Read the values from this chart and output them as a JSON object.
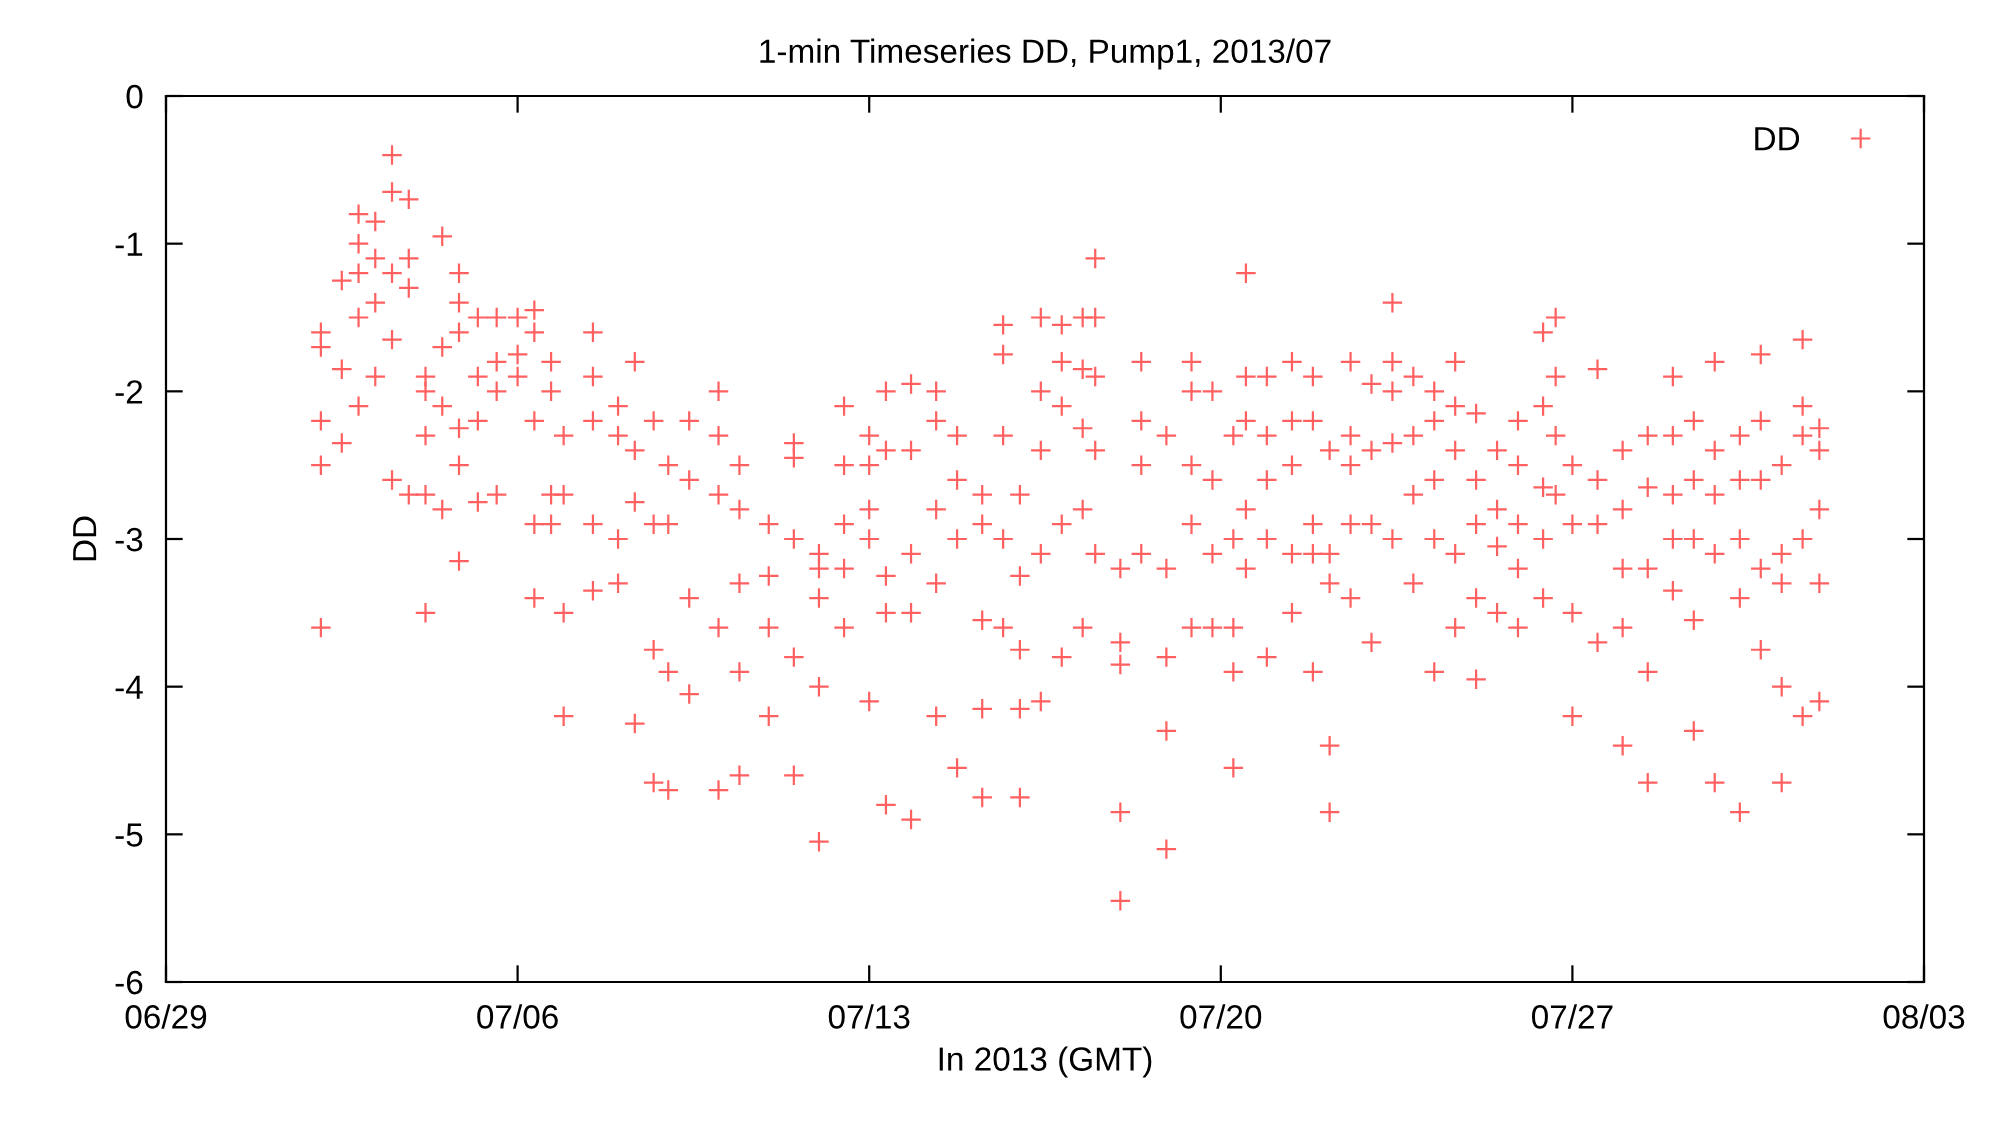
{
  "chart_data": {
    "type": "scatter",
    "title": "1-min Timeseries DD, Pump1, 2013/07",
    "xlabel": "In 2013 (GMT)",
    "ylabel": "DD",
    "xlim": [
      "2013-06-29",
      "2013-08-03"
    ],
    "xticks": [
      {
        "value": "2013-06-29",
        "label": "06/29"
      },
      {
        "value": "2013-07-06",
        "label": "07/06"
      },
      {
        "value": "2013-07-13",
        "label": "07/13"
      },
      {
        "value": "2013-07-20",
        "label": "07/20"
      },
      {
        "value": "2013-07-27",
        "label": "07/27"
      },
      {
        "value": "2013-08-03",
        "label": "08/03"
      }
    ],
    "ylim": [
      -6,
      0
    ],
    "yticks": [
      -6,
      -5,
      -4,
      -3,
      -2,
      -1,
      0
    ],
    "grid": false,
    "legend": "top right",
    "marker": "cross",
    "series": [
      {
        "name": "DD",
        "color": "#ff6060",
        "x": [
          "2013-07-02T02:00",
          "2013-07-02T02:00",
          "2013-07-02T02:00",
          "2013-07-02T02:00",
          "2013-07-02T02:00",
          "2013-07-02T12:00",
          "2013-07-02T12:00",
          "2013-07-02T12:00",
          "2013-07-02T20:00",
          "2013-07-02T20:00",
          "2013-07-02T20:00",
          "2013-07-02T20:00",
          "2013-07-02T20:00",
          "2013-07-03T04:00",
          "2013-07-03T04:00",
          "2013-07-03T04:00",
          "2013-07-03T04:00",
          "2013-07-03T12:00",
          "2013-07-03T12:00",
          "2013-07-03T12:00",
          "2013-07-03T12:00",
          "2013-07-03T12:00",
          "2013-07-03T20:00",
          "2013-07-03T20:00",
          "2013-07-03T20:00",
          "2013-07-03T20:00",
          "2013-07-04T04:00",
          "2013-07-04T04:00",
          "2013-07-04T04:00",
          "2013-07-04T04:00",
          "2013-07-04T04:00",
          "2013-07-04T12:00",
          "2013-07-04T12:00",
          "2013-07-04T12:00",
          "2013-07-04T12:00",
          "2013-07-04T20:00",
          "2013-07-04T20:00",
          "2013-07-04T20:00",
          "2013-07-04T20:00",
          "2013-07-04T20:00",
          "2013-07-04T20:00",
          "2013-07-05T05:00",
          "2013-07-05T05:00",
          "2013-07-05T05:00",
          "2013-07-05T05:00",
          "2013-07-05T14:00",
          "2013-07-05T14:00",
          "2013-07-05T14:00",
          "2013-07-05T14:00",
          "2013-07-06T00:00",
          "2013-07-06T00:00",
          "2013-07-06T00:00",
          "2013-07-06T08:00",
          "2013-07-06T08:00",
          "2013-07-06T08:00",
          "2013-07-06T08:00",
          "2013-07-06T08:00",
          "2013-07-06T16:00",
          "2013-07-06T16:00",
          "2013-07-06T16:00",
          "2013-07-06T16:00",
          "2013-07-06T22:00",
          "2013-07-06T22:00",
          "2013-07-06T22:00",
          "2013-07-06T22:00",
          "2013-07-07T12:00",
          "2013-07-07T12:00",
          "2013-07-07T12:00",
          "2013-07-07T12:00",
          "2013-07-07T12:00",
          "2013-07-08T00:00",
          "2013-07-08T00:00",
          "2013-07-08T00:00",
          "2013-07-08T00:00",
          "2013-07-08T08:00",
          "2013-07-08T08:00",
          "2013-07-08T08:00",
          "2013-07-08T08:00",
          "2013-07-08T17:00",
          "2013-07-08T17:00",
          "2013-07-08T17:00",
          "2013-07-08T17:00",
          "2013-07-09T00:00",
          "2013-07-09T00:00",
          "2013-07-09T00:00",
          "2013-07-09T00:00",
          "2013-07-09T10:00",
          "2013-07-09T10:00",
          "2013-07-09T10:00",
          "2013-07-09T10:00",
          "2013-07-10T00:00",
          "2013-07-10T00:00",
          "2013-07-10T00:00",
          "2013-07-10T00:00",
          "2013-07-10T00:00",
          "2013-07-10T10:00",
          "2013-07-10T10:00",
          "2013-07-10T10:00",
          "2013-07-10T10:00",
          "2013-07-10T10:00",
          "2013-07-11T00:00",
          "2013-07-11T00:00",
          "2013-07-11T00:00",
          "2013-07-11T00:00",
          "2013-07-11T12:00",
          "2013-07-11T12:00",
          "2013-07-11T12:00",
          "2013-07-11T12:00",
          "2013-07-11T12:00",
          "2013-07-12T00:00",
          "2013-07-12T00:00",
          "2013-07-12T00:00",
          "2013-07-12T00:00",
          "2013-07-12T00:00",
          "2013-07-12T12:00",
          "2013-07-12T12:00",
          "2013-07-12T12:00",
          "2013-07-12T12:00",
          "2013-07-12T12:00",
          "2013-07-13T00:00",
          "2013-07-13T00:00",
          "2013-07-13T00:00",
          "2013-07-13T00:00",
          "2013-07-13T00:00",
          "2013-07-13T08:00",
          "2013-07-13T08:00",
          "2013-07-13T08:00",
          "2013-07-13T08:00",
          "2013-07-13T08:00",
          "2013-07-13T20:00",
          "2013-07-13T20:00",
          "2013-07-13T20:00",
          "2013-07-13T20:00",
          "2013-07-13T20:00",
          "2013-07-14T08:00",
          "2013-07-14T08:00",
          "2013-07-14T08:00",
          "2013-07-14T08:00",
          "2013-07-14T08:00",
          "2013-07-14T18:00",
          "2013-07-14T18:00",
          "2013-07-14T18:00",
          "2013-07-14T18:00",
          "2013-07-15T06:00",
          "2013-07-15T06:00",
          "2013-07-15T06:00",
          "2013-07-15T06:00",
          "2013-07-15T06:00",
          "2013-07-15T16:00",
          "2013-07-15T16:00",
          "2013-07-15T16:00",
          "2013-07-15T16:00",
          "2013-07-15T16:00",
          "2013-07-16T00:00",
          "2013-07-16T00:00",
          "2013-07-16T00:00",
          "2013-07-16T00:00",
          "2013-07-16T00:00",
          "2013-07-16T10:00",
          "2013-07-16T10:00",
          "2013-07-16T10:00",
          "2013-07-16T10:00",
          "2013-07-16T10:00",
          "2013-07-16T20:00",
          "2013-07-16T20:00",
          "2013-07-16T20:00",
          "2013-07-16T20:00",
          "2013-07-16T20:00",
          "2013-07-17T06:00",
          "2013-07-17T06:00",
          "2013-07-17T06:00",
          "2013-07-17T06:00",
          "2013-07-17T06:00",
          "2013-07-17T12:00",
          "2013-07-17T12:00",
          "2013-07-17T12:00",
          "2013-07-17T12:00",
          "2013-07-17T12:00",
          "2013-07-18T00:00",
          "2013-07-18T00:00",
          "2013-07-18T00:00",
          "2013-07-18T00:00",
          "2013-07-18T00:00",
          "2013-07-18T10:00",
          "2013-07-18T10:00",
          "2013-07-18T10:00",
          "2013-07-18T10:00",
          "2013-07-18T22:00",
          "2013-07-18T22:00",
          "2013-07-18T22:00",
          "2013-07-18T22:00",
          "2013-07-18T22:00",
          "2013-07-19T10:00",
          "2013-07-19T10:00",
          "2013-07-19T10:00",
          "2013-07-19T10:00",
          "2013-07-19T10:00",
          "2013-07-19T20:00",
          "2013-07-19T20:00",
          "2013-07-19T20:00",
          "2013-07-19T20:00",
          "2013-07-20T06:00",
          "2013-07-20T06:00",
          "2013-07-20T06:00",
          "2013-07-20T06:00",
          "2013-07-20T06:00",
          "2013-07-20T12:00",
          "2013-07-20T12:00",
          "2013-07-20T12:00",
          "2013-07-20T12:00",
          "2013-07-20T12:00",
          "2013-07-20T22:00",
          "2013-07-20T22:00",
          "2013-07-20T22:00",
          "2013-07-20T22:00",
          "2013-07-20T22:00",
          "2013-07-21T10:00",
          "2013-07-21T10:00",
          "2013-07-21T10:00",
          "2013-07-21T10:00",
          "2013-07-21T10:00",
          "2013-07-21T20:00",
          "2013-07-21T20:00",
          "2013-07-21T20:00",
          "2013-07-21T20:00",
          "2013-07-21T20:00",
          "2013-07-22T04:00",
          "2013-07-22T04:00",
          "2013-07-22T04:00",
          "2013-07-22T04:00",
          "2013-07-22T04:00",
          "2013-07-22T14:00",
          "2013-07-22T14:00",
          "2013-07-22T14:00",
          "2013-07-22T14:00",
          "2013-07-22T14:00",
          "2013-07-23T00:00",
          "2013-07-23T00:00",
          "2013-07-23T00:00",
          "2013-07-23T00:00",
          "2013-07-23T10:00",
          "2013-07-23T10:00",
          "2013-07-23T10:00",
          "2013-07-23T10:00",
          "2013-07-23T10:00",
          "2013-07-23T20:00",
          "2013-07-23T20:00",
          "2013-07-23T20:00",
          "2013-07-23T20:00",
          "2013-07-24T06:00",
          "2013-07-24T06:00",
          "2013-07-24T06:00",
          "2013-07-24T06:00",
          "2013-07-24T06:00",
          "2013-07-24T16:00",
          "2013-07-24T16:00",
          "2013-07-24T16:00",
          "2013-07-24T16:00",
          "2013-07-24T16:00",
          "2013-07-25T02:00",
          "2013-07-25T02:00",
          "2013-07-25T02:00",
          "2013-07-25T02:00",
          "2013-07-25T02:00",
          "2013-07-25T12:00",
          "2013-07-25T12:00",
          "2013-07-25T12:00",
          "2013-07-25T12:00",
          "2013-07-25T22:00",
          "2013-07-25T22:00",
          "2013-07-25T22:00",
          "2013-07-25T22:00",
          "2013-07-25T22:00",
          "2013-07-26T10:00",
          "2013-07-26T10:00",
          "2013-07-26T10:00",
          "2013-07-26T10:00",
          "2013-07-26T10:00",
          "2013-07-26T16:00",
          "2013-07-26T16:00",
          "2013-07-26T16:00",
          "2013-07-26T16:00",
          "2013-07-27T00:00",
          "2013-07-27T00:00",
          "2013-07-27T00:00",
          "2013-07-27T00:00",
          "2013-07-27T12:00",
          "2013-07-27T12:00",
          "2013-07-27T12:00",
          "2013-07-27T12:00",
          "2013-07-28T00:00",
          "2013-07-28T00:00",
          "2013-07-28T00:00",
          "2013-07-28T00:00",
          "2013-07-28T00:00",
          "2013-07-28T12:00",
          "2013-07-28T12:00",
          "2013-07-28T12:00",
          "2013-07-28T12:00",
          "2013-07-28T12:00",
          "2013-07-29T00:00",
          "2013-07-29T00:00",
          "2013-07-29T00:00",
          "2013-07-29T00:00",
          "2013-07-29T00:00",
          "2013-07-29T10:00",
          "2013-07-29T10:00",
          "2013-07-29T10:00",
          "2013-07-29T10:00",
          "2013-07-29T10:00",
          "2013-07-29T20:00",
          "2013-07-29T20:00",
          "2013-07-29T20:00",
          "2013-07-29T20:00",
          "2013-07-29T20:00",
          "2013-07-30T08:00",
          "2013-07-30T08:00",
          "2013-07-30T08:00",
          "2013-07-30T08:00",
          "2013-07-30T08:00",
          "2013-07-30T18:00",
          "2013-07-30T18:00",
          "2013-07-30T18:00",
          "2013-07-30T18:00",
          "2013-07-30T18:00",
          "2013-07-31T04:00",
          "2013-07-31T04:00",
          "2013-07-31T04:00",
          "2013-07-31T04:00",
          "2013-07-31T04:00",
          "2013-07-31T14:00",
          "2013-07-31T14:00",
          "2013-07-31T14:00",
          "2013-07-31T14:00",
          "2013-07-31T14:00",
          "2013-07-31T22:00",
          "2013-07-31T22:00",
          "2013-07-31T22:00",
          "2013-07-31T22:00",
          "2013-07-31T22:00"
        ],
        "values": [
          -1.6,
          -1.7,
          -2.2,
          -2.5,
          -3.6,
          -1.25,
          -1.85,
          -2.35,
          -0.8,
          -1.0,
          -1.2,
          -2.1,
          -1.5,
          -0.85,
          -1.1,
          -1.4,
          -1.9,
          -0.4,
          -0.65,
          -1.2,
          -1.65,
          -2.6,
          -0.7,
          -1.1,
          -1.3,
          -2.7,
          -1.9,
          -2.0,
          -2.3,
          -2.7,
          -3.5,
          -0.95,
          -1.7,
          -2.1,
          -2.8,
          -1.2,
          -1.4,
          -1.6,
          -2.25,
          -2.5,
          -3.15,
          -1.5,
          -1.9,
          -2.2,
          -2.75,
          -1.5,
          -1.8,
          -2.0,
          -2.7,
          -1.5,
          -1.75,
          -1.9,
          -1.45,
          -1.6,
          -2.2,
          -2.9,
          -3.4,
          -1.8,
          -2.0,
          -2.7,
          -2.9,
          -2.3,
          -2.7,
          -3.5,
          -4.2,
          -1.6,
          -1.9,
          -2.2,
          -2.9,
          -3.35,
          -2.1,
          -2.3,
          -3.0,
          -3.3,
          -1.8,
          -2.4,
          -2.75,
          -4.25,
          -2.2,
          -2.9,
          -3.75,
          -4.65,
          -2.5,
          -2.9,
          -3.9,
          -4.7,
          -2.2,
          -2.6,
          -3.4,
          -4.05,
          -2.0,
          -2.3,
          -2.7,
          -3.6,
          -4.7,
          -2.5,
          -2.8,
          -3.3,
          -3.9,
          -4.6,
          -2.9,
          -3.25,
          -3.6,
          -4.2,
          -2.35,
          -2.45,
          -3.0,
          -3.8,
          -4.6,
          -3.1,
          -3.2,
          -3.4,
          -4.0,
          -5.05,
          -2.1,
          -2.5,
          -2.9,
          -3.2,
          -3.6,
          -2.3,
          -2.5,
          -2.8,
          -3.0,
          -4.1,
          -2.0,
          -2.4,
          -3.25,
          -3.5,
          -4.8,
          -1.95,
          -2.4,
          -3.1,
          -3.5,
          -4.9,
          -2.0,
          -2.2,
          -2.8,
          -3.3,
          -4.2,
          -2.3,
          -2.6,
          -3.0,
          -4.55,
          -2.7,
          -2.9,
          -3.55,
          -4.15,
          -4.75,
          -1.55,
          -1.75,
          -2.3,
          -3.0,
          -3.6,
          -2.7,
          -3.25,
          -3.75,
          -4.15,
          -4.75,
          -1.5,
          -2.0,
          -2.4,
          -3.1,
          -4.1,
          -1.55,
          -1.8,
          -2.1,
          -2.9,
          -3.8,
          -1.5,
          -1.85,
          -2.25,
          -2.8,
          -3.6,
          -1.1,
          -1.5,
          -1.9,
          -2.4,
          -3.1,
          -3.2,
          -3.7,
          -3.85,
          -4.85,
          -5.45,
          -1.8,
          -2.2,
          -2.5,
          -3.1,
          -2.3,
          -3.2,
          -3.8,
          -4.3,
          -5.1,
          -1.8,
          -2.0,
          -2.5,
          -2.9,
          -3.6,
          -2.0,
          -2.6,
          -3.1,
          -3.6,
          -2.3,
          -3.0,
          -3.6,
          -3.9,
          -4.55,
          -1.2,
          -1.9,
          -2.2,
          -2.8,
          -3.2,
          -1.9,
          -2.3,
          -2.6,
          -3.0,
          -3.8,
          -1.8,
          -2.2,
          -2.5,
          -3.1,
          -3.5,
          -1.9,
          -2.2,
          -2.9,
          -3.1,
          -3.9,
          -2.4,
          -3.1,
          -3.3,
          -4.4,
          -4.85,
          -1.8,
          -2.3,
          -2.5,
          -2.9,
          -3.4,
          -1.95,
          -2.4,
          -2.9,
          -3.7,
          -1.4,
          -1.8,
          -2.0,
          -2.35,
          -3.0,
          -1.9,
          -2.3,
          -2.7,
          -3.3,
          -2.0,
          -2.2,
          -2.6,
          -3.0,
          -3.9,
          -1.8,
          -2.1,
          -2.4,
          -3.1,
          -3.6,
          -2.15,
          -2.6,
          -2.9,
          -3.4,
          -3.95,
          -2.4,
          -2.8,
          -3.05,
          -3.5,
          -2.2,
          -2.5,
          -2.9,
          -3.2,
          -3.6,
          -1.6,
          -2.1,
          -2.65,
          -3.0,
          -3.4,
          -1.5,
          -1.9,
          -2.3,
          -2.7,
          -2.5,
          -2.9,
          -3.5,
          -4.2,
          -1.85,
          -2.6,
          -2.9,
          -3.7,
          -2.4,
          -2.8,
          -3.2,
          -3.6,
          -4.4,
          -2.3,
          -2.65,
          -3.2,
          -3.9,
          -4.65,
          -1.9,
          -2.3,
          -2.7,
          -3.0,
          -3.35,
          -2.2,
          -2.6,
          -3.0,
          -3.55,
          -4.3,
          -1.8,
          -2.4,
          -2.7,
          -3.1,
          -4.65,
          -2.3,
          -2.6,
          -3.0,
          -3.4,
          -4.85,
          -1.75,
          -2.2,
          -2.6,
          -3.2,
          -3.75,
          -2.5,
          -3.1,
          -3.3,
          -4.0,
          -4.65,
          -1.65,
          -2.1,
          -2.3,
          -3.0,
          -4.2,
          -2.25,
          -2.4,
          -2.8,
          -3.3,
          -4.1
        ]
      }
    ]
  }
}
